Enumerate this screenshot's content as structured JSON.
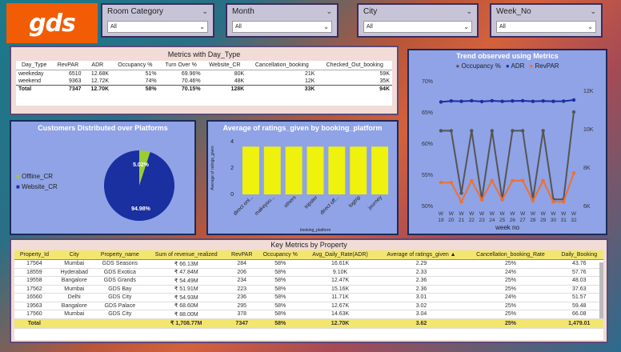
{
  "logo": "gds",
  "slicers": [
    {
      "label": "Room Category",
      "value": "All"
    },
    {
      "label": "Month",
      "value": "All"
    },
    {
      "label": "City",
      "value": "All"
    },
    {
      "label": "Week_No",
      "value": "All"
    }
  ],
  "metrics_day_type": {
    "title": "Metrics with Day_Type",
    "columns": [
      "Day_Type",
      "RevPAR",
      "ADR",
      "Occupancy %",
      "Turn Over %",
      "Website_CR",
      "Cancellation_booking",
      "Checked_Out_booking"
    ],
    "rows": [
      [
        "weekeday",
        "6510",
        "12.68K",
        "51%",
        "69.96%",
        "80K",
        "21K",
        "59K"
      ],
      [
        "weekend",
        "9363",
        "12.72K",
        "74%",
        "70.46%",
        "48K",
        "12K",
        "35K"
      ]
    ],
    "total": [
      "Total",
      "7347",
      "12.70K",
      "58%",
      "70.15%",
      "128K",
      "33K",
      "94K"
    ]
  },
  "pie_panel": {
    "title": "Customers Distributed over Platforms",
    "legend": [
      {
        "label": "Offline_CR",
        "color": "#9acd32"
      },
      {
        "label": "Website_CR",
        "color": "#1a2fa0"
      }
    ]
  },
  "ratings_panel": {
    "title": "Average of ratings_given by booking_platform",
    "ylabel": "Average of ratings_given",
    "xlabel": "booking_platform",
    "bar_color": "#eef20c"
  },
  "trend_panel": {
    "title": "Trend observed using Metrics",
    "legend": [
      {
        "label": "Occupancy %",
        "color": "#555555"
      },
      {
        "label": "ADR",
        "color": "#1a2fa0"
      },
      {
        "label": "RevPAR",
        "color": "#f07030"
      }
    ],
    "ylabel_left": "Occupancy %",
    "ylabel_right": "ADR and RevPAR",
    "xlabel": "week no"
  },
  "key_metrics": {
    "title": "Key Metrics by Property",
    "columns": [
      "Property_Id",
      "City",
      "Property_name",
      "Sum of revenue_realized",
      "RevPAR",
      "Occupancy %",
      "Avg_Daily_Rate(ADR)",
      "Average of ratings_given",
      "Cancellation_booking_Rate",
      "Daily_Booking"
    ],
    "sort_arrow": "▲",
    "rows": [
      [
        "17564",
        "Mumbai",
        "GDS Seasons",
        "₹ 66.13M",
        "284",
        "58%",
        "16.61K",
        "2.29",
        "25%",
        "43.76"
      ],
      [
        "18559",
        "Hyderabad",
        "GDS Exotica",
        "₹ 47.84M",
        "206",
        "58%",
        "9.10K",
        "2.33",
        "24%",
        "57.76"
      ],
      [
        "19558",
        "Bangalore",
        "GDS Grands",
        "₹ 54.49M",
        "234",
        "58%",
        "12.47K",
        "2.36",
        "25%",
        "48.03"
      ],
      [
        "17562",
        "Mumbai",
        "GDS Bay",
        "₹ 51.91M",
        "223",
        "58%",
        "15.16K",
        "2.36",
        "25%",
        "37.63"
      ],
      [
        "16560",
        "Delhi",
        "GDS City",
        "₹ 54.93M",
        "236",
        "58%",
        "11.71K",
        "3.01",
        "24%",
        "51.57"
      ],
      [
        "19563",
        "Bangalore",
        "GDS Palace",
        "₹ 68.60M",
        "295",
        "58%",
        "12.67K",
        "3.02",
        "25%",
        "59.48"
      ],
      [
        "17560",
        "Mumbai",
        "GDS City",
        "₹ 88.00M",
        "378",
        "58%",
        "14.63K",
        "3.04",
        "25%",
        "66.08"
      ]
    ],
    "total": [
      "Total",
      "",
      "",
      "₹ 1,708.77M",
      "7347",
      "58%",
      "12.70K",
      "3.62",
      "25%",
      "1,479.01"
    ]
  },
  "chart_data": [
    {
      "type": "pie",
      "title": "Customers Distributed over Platforms",
      "labels": [
        "Offline_CR",
        "Website_CR"
      ],
      "values": [
        5.02,
        94.98
      ],
      "value_labels": [
        "5.02%",
        "94.98%"
      ],
      "colors": [
        "#9acd32",
        "#1a2fa0"
      ],
      "legend": "left"
    },
    {
      "type": "bar",
      "title": "Average of ratings_given by booking_platform",
      "categories": [
        "direct onl...",
        "makeyou...",
        "others",
        "tripster",
        "direct off...",
        "logtrip",
        "journey"
      ],
      "values": [
        3.62,
        3.62,
        3.62,
        3.62,
        3.62,
        3.62,
        3.62
      ],
      "yticks": [
        "0",
        "2",
        "4"
      ],
      "ylim": [
        0,
        4
      ],
      "xlabel": "booking_platform",
      "ylabel": "Average of ratings_given"
    },
    {
      "type": "line",
      "title": "Trend observed using Metrics",
      "categories": [
        "W 19",
        "W 20",
        "W 21",
        "W 22",
        "W 23",
        "W 24",
        "W 25",
        "W 26",
        "W 27",
        "W 28",
        "W 29",
        "W 30",
        "W 31",
        "W 32"
      ],
      "series": [
        {
          "name": "Occupancy %",
          "axis": "left",
          "values": [
            62,
            62,
            52,
            62,
            51,
            62,
            51,
            62,
            62,
            51,
            62,
            51,
            51,
            65
          ]
        },
        {
          "name": "ADR",
          "axis": "right",
          "values": [
            11400,
            11450,
            11430,
            11460,
            11420,
            11460,
            11430,
            11450,
            11460,
            11430,
            11450,
            11430,
            11440,
            11500
          ]
        },
        {
          "name": "RevPAR",
          "axis": "right",
          "values": [
            7200,
            7200,
            6200,
            7300,
            6300,
            7300,
            6300,
            7300,
            7300,
            6250,
            7300,
            6200,
            6200,
            7700
          ]
        }
      ],
      "yticks_left": [
        "50%",
        "55%",
        "60%",
        "65%",
        "70%"
      ],
      "ylim_left": [
        50,
        70
      ],
      "yticks_right": [
        "6K",
        "8K",
        "10K",
        "12K"
      ],
      "ylim_right": [
        6000,
        12500
      ],
      "xlabel": "week no",
      "legend": "top"
    }
  ]
}
